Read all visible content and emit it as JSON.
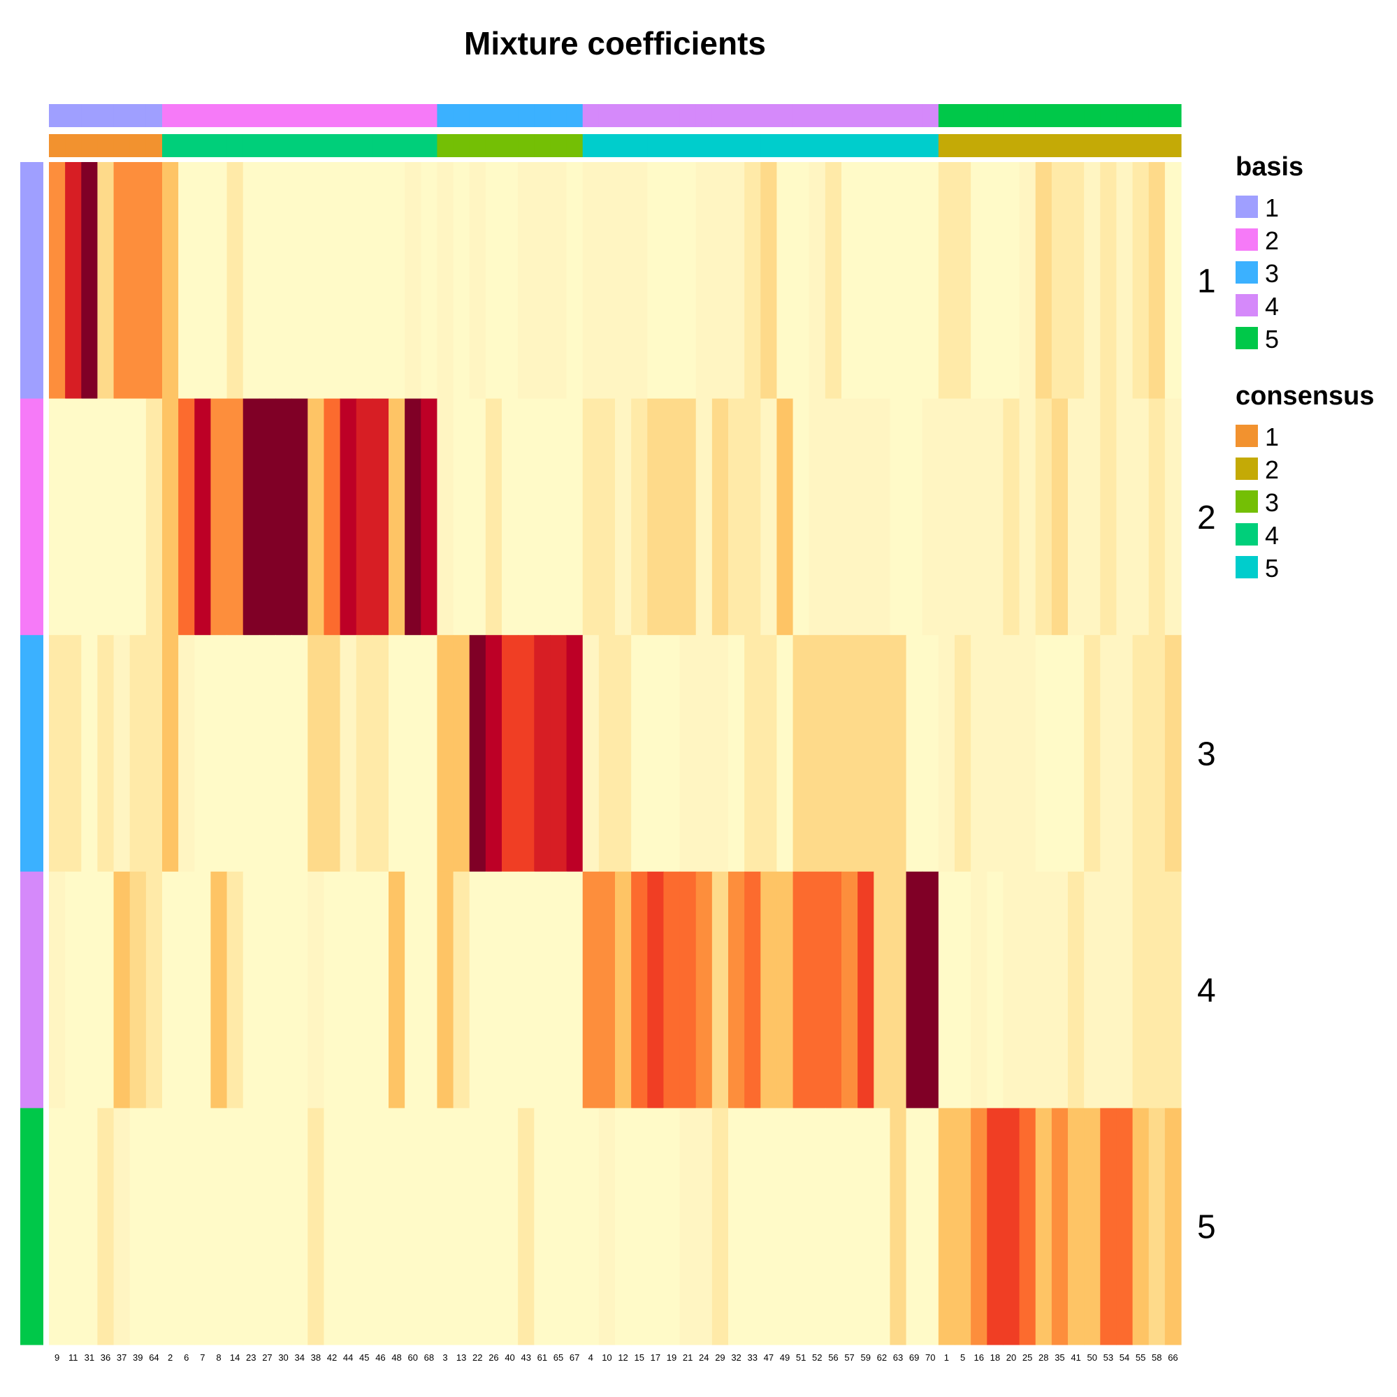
{
  "chart_data": {
    "type": "heatmap",
    "title": "Mixture coefficients",
    "rows": [
      "1",
      "2",
      "3",
      "4",
      "5"
    ],
    "columns": [
      "9",
      "11",
      "31",
      "36",
      "37",
      "39",
      "64",
      "2",
      "6",
      "7",
      "8",
      "14",
      "23",
      "27",
      "30",
      "34",
      "38",
      "42",
      "44",
      "45",
      "46",
      "48",
      "60",
      "68",
      "3",
      "13",
      "22",
      "26",
      "40",
      "43",
      "61",
      "65",
      "67",
      "4",
      "10",
      "12",
      "15",
      "17",
      "19",
      "21",
      "24",
      "29",
      "32",
      "33",
      "47",
      "49",
      "51",
      "52",
      "56",
      "57",
      "59",
      "62",
      "63",
      "69",
      "70",
      "1",
      "5",
      "16",
      "18",
      "20",
      "25",
      "28",
      "35",
      "41",
      "50",
      "53",
      "54",
      "55",
      "58",
      "66"
    ],
    "values": [
      [
        5,
        8,
        10,
        3,
        5,
        5,
        5,
        4,
        0,
        0,
        0,
        2,
        0,
        0,
        0,
        0,
        0,
        0,
        0,
        0,
        0,
        0,
        0.5,
        0,
        0.5,
        0,
        1,
        0,
        0,
        0.5,
        1,
        1,
        0,
        1,
        0.5,
        1,
        1,
        0,
        0,
        0,
        0.5,
        0.5,
        1,
        2,
        2.5,
        0,
        0,
        1,
        1.5,
        0,
        0,
        0,
        0,
        0,
        0,
        1.5,
        1.5,
        0,
        0,
        0,
        0.5,
        3,
        2,
        1.5,
        1,
        2,
        1,
        2,
        3,
        0
      ],
      [
        0,
        0,
        0,
        0,
        0,
        0,
        2,
        4,
        6,
        9,
        5,
        5,
        10,
        10,
        10,
        10,
        4,
        6,
        9,
        8,
        8,
        4,
        10,
        9,
        1,
        0,
        0,
        2,
        0,
        0,
        0,
        0,
        0,
        2,
        2,
        1,
        2,
        3,
        3,
        3,
        1,
        3,
        1.5,
        1.5,
        1,
        4,
        0,
        0.5,
        1,
        1,
        0.5,
        1,
        0,
        0,
        1,
        1,
        1,
        1,
        0.5,
        1.5,
        1,
        2,
        2.5,
        1,
        1,
        2,
        1,
        1,
        1.5,
        0.5
      ],
      [
        2,
        2,
        0,
        2,
        1,
        1.5,
        1.5,
        4,
        0.5,
        0,
        0,
        0,
        0,
        0,
        0,
        0,
        3,
        3,
        1,
        1.5,
        1.5,
        0,
        0,
        0,
        4,
        4,
        10,
        9,
        7,
        7,
        8,
        8,
        9,
        0.5,
        2,
        2,
        0,
        0,
        0,
        1,
        1,
        1,
        0,
        1.5,
        1.5,
        0,
        3,
        3,
        3,
        2.5,
        2.5,
        3,
        3,
        0,
        0,
        1,
        1.5,
        1,
        0.5,
        0.5,
        1,
        0,
        0,
        0,
        2,
        0.5,
        1,
        2,
        2,
        3
      ],
      [
        1,
        0,
        0,
        0,
        4,
        3,
        2,
        0,
        0,
        0,
        4,
        2,
        0,
        0,
        0,
        0,
        0.5,
        0,
        0,
        0,
        0,
        4,
        0,
        0,
        4,
        2,
        0,
        0,
        0,
        0,
        0,
        0,
        0,
        5,
        5,
        4,
        6,
        7,
        6,
        6,
        5,
        3,
        5,
        6,
        4,
        4,
        6,
        6,
        6,
        5,
        7,
        3,
        3,
        10,
        10,
        0,
        0,
        0.5,
        0,
        1,
        1,
        1,
        1,
        2,
        1,
        1,
        1,
        2,
        2,
        2
      ],
      [
        0,
        0,
        0,
        2,
        1,
        0,
        0,
        0,
        0,
        0,
        0,
        0,
        0,
        0,
        0,
        0,
        2,
        0,
        0,
        0,
        0,
        0,
        0,
        0,
        0,
        0,
        0,
        0,
        0,
        2,
        0,
        0,
        0,
        0,
        1,
        0,
        0,
        0,
        0,
        0.5,
        0.5,
        2,
        0,
        0,
        0,
        0,
        0,
        0,
        0,
        0,
        0,
        0,
        2.5,
        0,
        0,
        4,
        4,
        5,
        7,
        7,
        6,
        4,
        5,
        4,
        4,
        6,
        6,
        4,
        3,
        4
      ]
    ],
    "value_scale": [
      0,
      10
    ],
    "color_ramp": [
      "#FFFAC8",
      "#FFF5C2",
      "#FFEAA8",
      "#FEDA8A",
      "#FEC465",
      "#FEAA4C",
      "#FD8E3C",
      "#FC6B2E",
      "#F03E24",
      "#D71E24",
      "#BD0026",
      "#800026"
    ],
    "column_annotations": {
      "basis": [
        "1",
        "1",
        "1",
        "1",
        "1",
        "1",
        "1",
        "2",
        "2",
        "2",
        "2",
        "2",
        "2",
        "2",
        "2",
        "2",
        "2",
        "2",
        "2",
        "2",
        "2",
        "2",
        "2",
        "2",
        "3",
        "3",
        "3",
        "3",
        "3",
        "3",
        "3",
        "3",
        "3",
        "4",
        "4",
        "4",
        "4",
        "4",
        "4",
        "4",
        "4",
        "4",
        "4",
        "4",
        "4",
        "4",
        "4",
        "4",
        "4",
        "4",
        "4",
        "4",
        "4",
        "4",
        "4",
        "5",
        "5",
        "5",
        "5",
        "5",
        "5",
        "5",
        "5",
        "5",
        "5",
        "5",
        "5",
        "5",
        "5",
        "5"
      ],
      "consensus": [
        "1",
        "1",
        "1",
        "1",
        "1",
        "1",
        "1",
        "4",
        "4",
        "4",
        "4",
        "4",
        "4",
        "4",
        "4",
        "4",
        "4",
        "4",
        "4",
        "4",
        "4",
        "4",
        "4",
        "4",
        "3",
        "3",
        "3",
        "3",
        "3",
        "3",
        "3",
        "3",
        "3",
        "5",
        "5",
        "5",
        "5",
        "5",
        "5",
        "5",
        "5",
        "5",
        "5",
        "5",
        "5",
        "5",
        "5",
        "5",
        "5",
        "5",
        "5",
        "5",
        "5",
        "5",
        "5",
        "2",
        "2",
        "2",
        "2",
        "2",
        "2",
        "2",
        "2",
        "2",
        "2",
        "2",
        "2",
        "2",
        "2",
        "2"
      ]
    },
    "row_annotation": [
      "1",
      "2",
      "3",
      "4",
      "5"
    ],
    "legends": [
      {
        "title": "basis",
        "entries": [
          {
            "label": "1",
            "color": "#9F9FFF"
          },
          {
            "label": "2",
            "color": "#F67AF8"
          },
          {
            "label": "3",
            "color": "#3BB1FF"
          },
          {
            "label": "4",
            "color": "#D589FA"
          },
          {
            "label": "5",
            "color": "#00C849"
          }
        ]
      },
      {
        "title": "consensus",
        "entries": [
          {
            "label": "1",
            "color": "#F2922F"
          },
          {
            "label": "2",
            "color": "#C4AA06"
          },
          {
            "label": "3",
            "color": "#74BF05"
          },
          {
            "label": "4",
            "color": "#00CF7A"
          },
          {
            "label": "5",
            "color": "#00CDCC"
          }
        ]
      }
    ]
  }
}
